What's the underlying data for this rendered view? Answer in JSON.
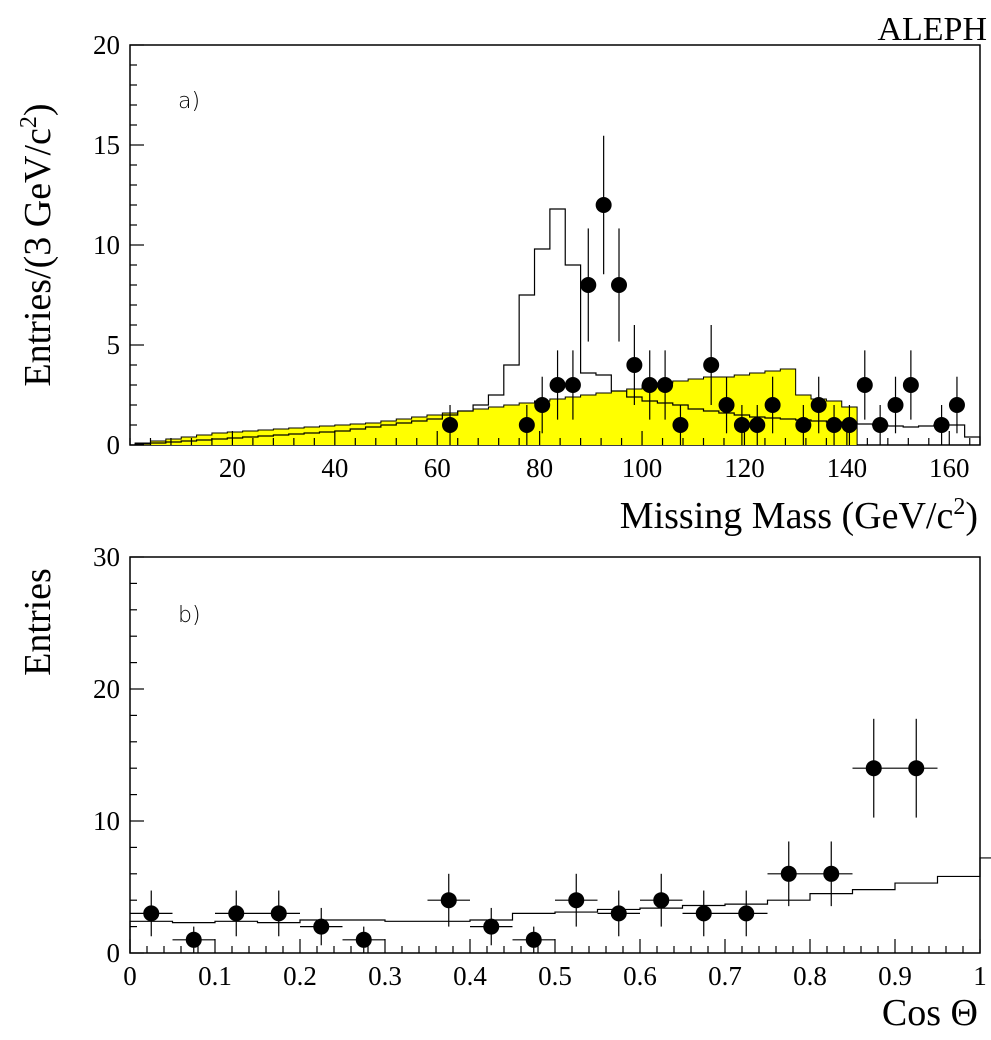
{
  "experiment_label": "ALEPH",
  "colors": {
    "background_fill": "#ffff00",
    "line": "#000000",
    "marker": "#000000"
  },
  "chart_data": [
    {
      "type": "histogram",
      "panel_label": "a)",
      "xlabel": "Missing Mass (GeV/c",
      "xlabel_sup": "2",
      "xlabel_close": ")",
      "ylabel": "Entries/(3 GeV/c",
      "ylabel_sup": "2",
      "ylabel_close": ")",
      "xlim": [
        0,
        166
      ],
      "ylim": [
        0,
        20
      ],
      "xticks": [
        20,
        40,
        60,
        80,
        100,
        120,
        140,
        160
      ],
      "yticks": [
        0,
        5,
        10,
        15,
        20
      ],
      "background_hist": {
        "fill": "#ffff00",
        "bin_width": 3,
        "x_start": 1,
        "values": [
          0.1,
          0.2,
          0.3,
          0.4,
          0.5,
          0.6,
          0.65,
          0.7,
          0.75,
          0.8,
          0.85,
          0.9,
          0.95,
          1.0,
          1.05,
          1.1,
          1.2,
          1.3,
          1.4,
          1.5,
          1.6,
          1.7,
          1.8,
          1.9,
          2.0,
          2.1,
          2.2,
          2.3,
          2.4,
          2.5,
          2.6,
          2.7,
          2.8,
          3.0,
          3.1,
          3.2,
          3.3,
          3.4,
          3.4,
          3.5,
          3.6,
          3.7,
          3.8,
          2.5,
          2.3,
          2.2,
          1.9
        ]
      },
      "signal_hist": {
        "bin_width": 3,
        "x_start": 1,
        "values": [
          0.05,
          0.1,
          0.15,
          0.2,
          0.25,
          0.3,
          0.35,
          0.4,
          0.45,
          0.5,
          0.55,
          0.6,
          0.65,
          0.7,
          0.8,
          0.9,
          1.0,
          1.1,
          1.2,
          1.3,
          1.5,
          1.7,
          2.0,
          2.5,
          4.0,
          7.5,
          9.8,
          11.8,
          9.0,
          3.6,
          3.5,
          2.7,
          2.4,
          2.2,
          2.1,
          2.0,
          1.8,
          1.7,
          1.6,
          1.5,
          1.4,
          1.35,
          1.3,
          1.25,
          1.2,
          1.15,
          1.1,
          1.05,
          1.0,
          0.95,
          0.9,
          0.95,
          1.0,
          1.0,
          0.4
        ]
      },
      "points": {
        "x": [
          62.5,
          77.5,
          80.5,
          83.5,
          86.5,
          89.5,
          92.5,
          95.5,
          98.5,
          101.5,
          104.5,
          107.5,
          113.5,
          116.5,
          119.5,
          122.5,
          125.5,
          131.5,
          134.5,
          137.5,
          140.5,
          143.5,
          146.5,
          149.5,
          152.5,
          158.5,
          161.5
        ],
        "y": [
          1,
          1,
          2,
          3,
          3,
          8,
          12,
          8,
          4,
          3,
          3,
          1,
          4,
          2,
          1,
          1,
          2,
          1,
          2,
          1,
          1,
          3,
          1,
          2,
          3,
          1,
          2
        ]
      }
    },
    {
      "type": "histogram",
      "panel_label": "b)",
      "xlabel": "Cos Θ",
      "ylabel": "Entries",
      "xlim": [
        0,
        1
      ],
      "ylim": [
        0,
        30
      ],
      "xticks": [
        0,
        0.1,
        0.2,
        0.3,
        0.4,
        0.5,
        0.6,
        0.7,
        0.8,
        0.9,
        1
      ],
      "xtick_labels": [
        "0",
        "0.1",
        "0.2",
        "0.3",
        "0.4",
        "0.5",
        "0.6",
        "0.7",
        "0.8",
        "0.9",
        "1"
      ],
      "yticks": [
        0,
        10,
        20,
        30
      ],
      "expected_hist": {
        "bin_width": 0.05,
        "x_start": 0,
        "values": [
          2.4,
          2.3,
          2.4,
          2.3,
          2.5,
          2.5,
          2.4,
          2.4,
          2.5,
          3.0,
          3.1,
          3.3,
          3.4,
          3.6,
          3.7,
          4.0,
          4.5,
          4.8,
          5.3,
          5.8,
          7.2,
          9.8,
          12.6,
          0
        ]
      },
      "points": {
        "x": [
          0.025,
          0.075,
          0.125,
          0.175,
          0.225,
          0.275,
          0.375,
          0.425,
          0.475,
          0.525,
          0.575,
          0.625,
          0.675,
          0.725,
          0.775,
          0.825,
          0.875,
          0.925
        ],
        "y": [
          3,
          1,
          3,
          3,
          2,
          1,
          4,
          2,
          1,
          4,
          3,
          4,
          3,
          3,
          6,
          6,
          14,
          14
        ]
      }
    }
  ]
}
